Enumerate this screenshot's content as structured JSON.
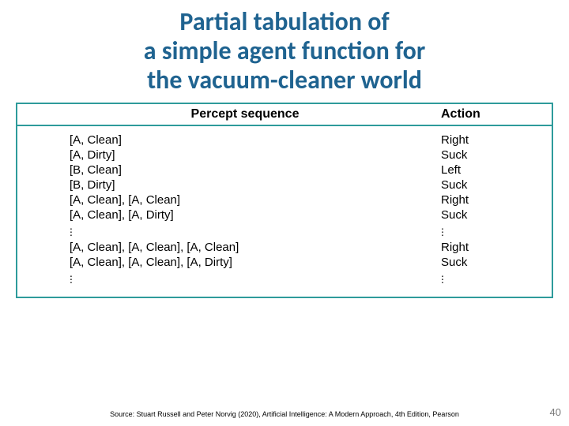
{
  "title_lines": [
    "Partial tabulation of",
    "a simple agent function for",
    "the vacuum-cleaner world"
  ],
  "title_color": "#1f6390",
  "title_fontsize": 32,
  "table": {
    "border_color": "#2e9b9b",
    "header_percept": "Percept sequence",
    "header_action": "Action",
    "header_fontsize": 16,
    "cell_fontsize": 15,
    "rows": [
      {
        "percept": "[A, Clean]",
        "action": "Right"
      },
      {
        "percept": "[A, Dirty]",
        "action": "Suck"
      },
      {
        "percept": "[B, Clean]",
        "action": "Left"
      },
      {
        "percept": "[B, Dirty]",
        "action": "Suck"
      },
      {
        "percept": "[A, Clean], [A, Clean]",
        "action": "Right"
      },
      {
        "percept": "[A, Clean], [A, Dirty]",
        "action": "Suck"
      },
      {
        "percept": "VDOTS",
        "action": "VDOTS"
      },
      {
        "percept": "[A, Clean], [A, Clean], [A, Clean]",
        "action": "Right"
      },
      {
        "percept": "[A, Clean], [A, Clean], [A, Dirty]",
        "action": "Suck"
      },
      {
        "percept": "VDOTS",
        "action": "VDOTS"
      }
    ]
  },
  "source": "Source: Stuart Russell and Peter Norvig (2020), Artificial Intelligence: A Modern Approach, 4th Edition, Pearson",
  "source_fontsize": 9,
  "pagenum": "40",
  "pagenum_fontsize": 13,
  "pagenum_color": "#7a7a7a"
}
